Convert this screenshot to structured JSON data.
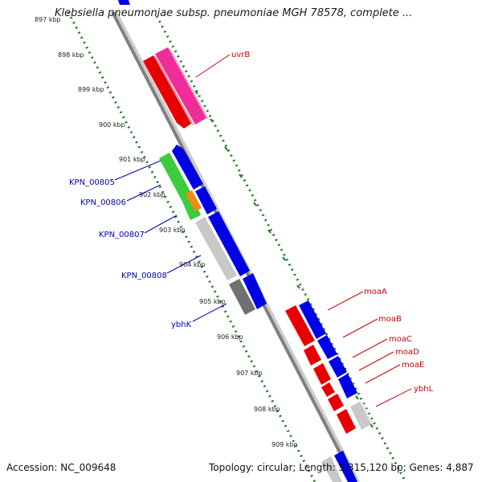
{
  "title": "Klebsiella pneumoniae subsp. pneumoniae MGH 78578, complete ...",
  "footer": {
    "accession": "Accession: NC_009648",
    "summary": "Topology: circular; Length: 5,315,120 bp; Genes: 4,887"
  },
  "colors": {
    "backbone": "#808080",
    "dotted_track": "#1f7a1f",
    "forward_label": "#cc0000",
    "reverse_label": "#0000bb",
    "blue": "#0000e6",
    "red": "#e60000",
    "pink": "#ee2d99",
    "green": "#3ccc3c",
    "orange": "#f08c14",
    "light_gray": "#c8c8c8",
    "dark_gray": "#707070"
  },
  "ticks": [
    {
      "label": "897 kbp"
    },
    {
      "label": "898 kbp"
    },
    {
      "label": "899 kbp"
    },
    {
      "label": "900 kbp"
    },
    {
      "label": "901 kbp"
    },
    {
      "label": "902 kbp"
    },
    {
      "label": "903 kbp"
    },
    {
      "label": "904 kbp"
    },
    {
      "label": "905 kbp"
    },
    {
      "label": "906 kbp"
    },
    {
      "label": "907 kbp"
    },
    {
      "label": "908 kbp"
    },
    {
      "label": "909 kbp"
    }
  ],
  "genes_forward": [
    {
      "label": "uvrB"
    },
    {
      "label": "moaA"
    },
    {
      "label": "moaB"
    },
    {
      "label": "moaC"
    },
    {
      "label": "moaD"
    },
    {
      "label": "moaE"
    },
    {
      "label": "ybhL"
    }
  ],
  "genes_reverse": [
    {
      "label": "KPN_00805"
    },
    {
      "label": "KPN_00806"
    },
    {
      "label": "KPN_00807"
    },
    {
      "label": "KPN_00808"
    },
    {
      "label": "ybhK"
    }
  ]
}
